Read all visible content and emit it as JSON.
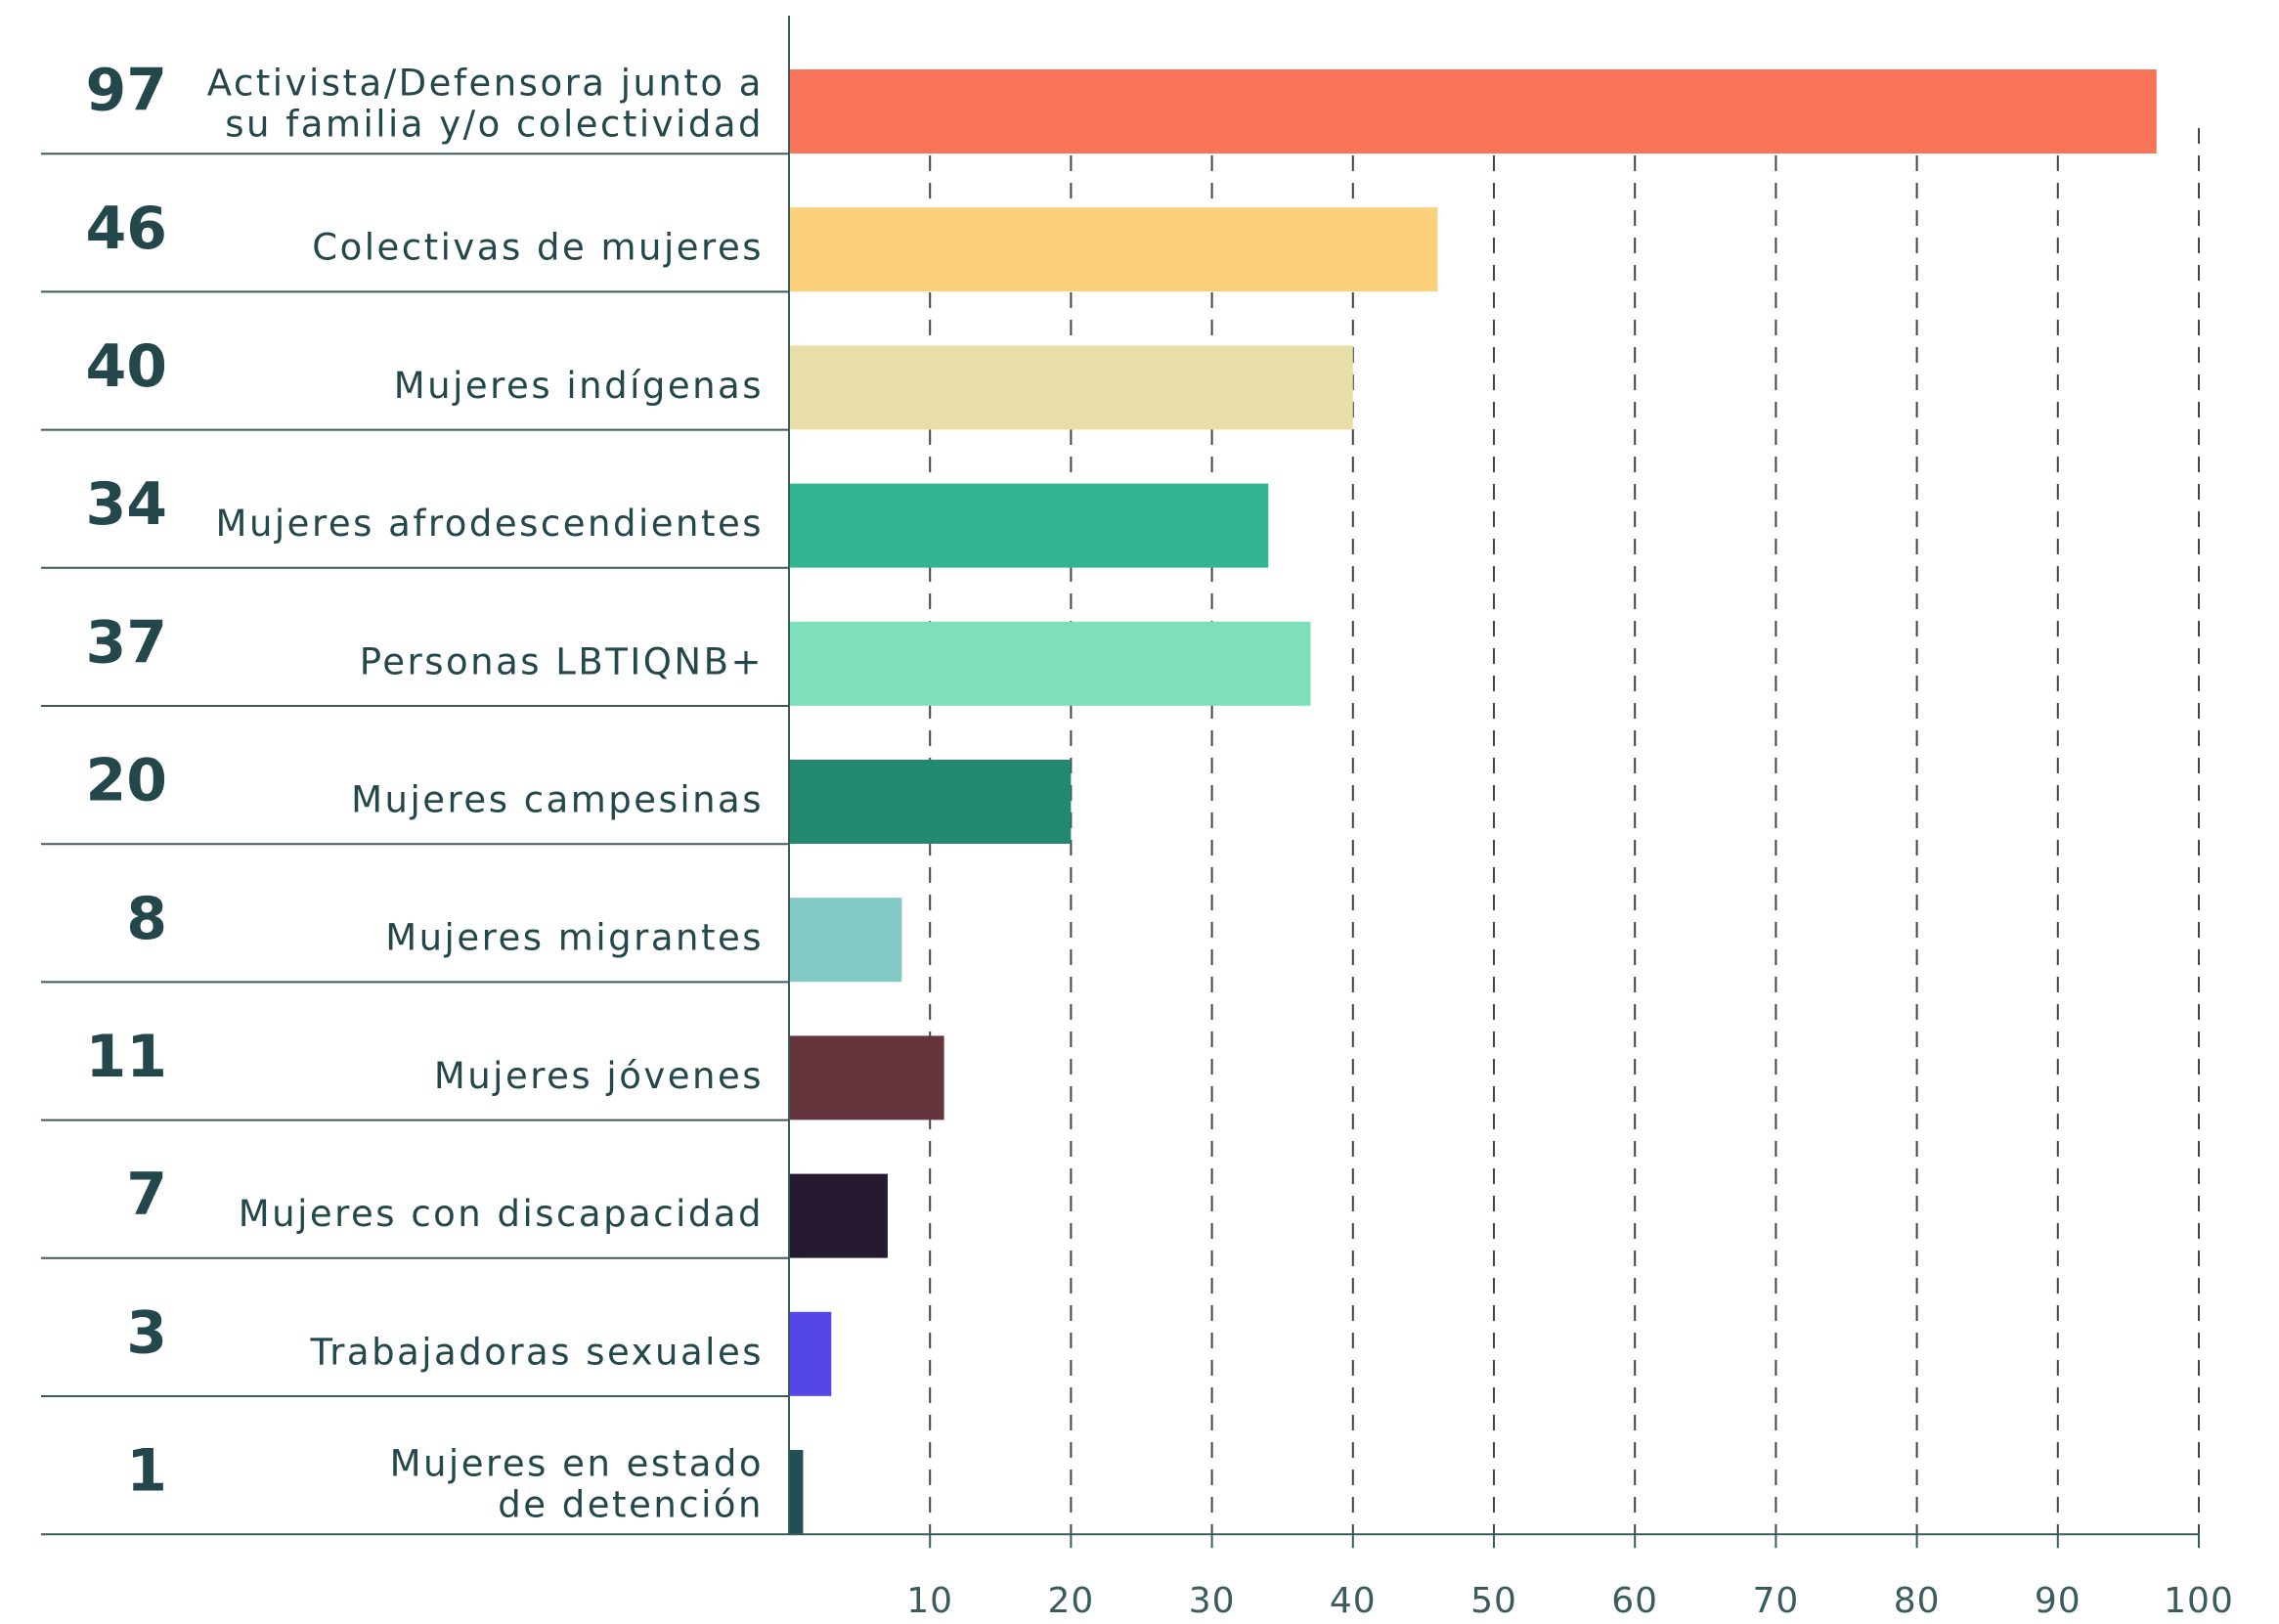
{
  "chart_data": {
    "type": "bar",
    "orientation": "horizontal",
    "categories": [
      [
        "Activista/Defensora junto a",
        "su familia y/o colectividad"
      ],
      [
        "Colectivas de mujeres"
      ],
      [
        "Mujeres indígenas"
      ],
      [
        "Mujeres afrodescendientes"
      ],
      [
        "Personas LBTIQNB+"
      ],
      [
        "Mujeres campesinas"
      ],
      [
        "Mujeres migrantes"
      ],
      [
        "Mujeres jóvenes"
      ],
      [
        "Mujeres con discapacidad"
      ],
      [
        "Trabajadoras sexuales"
      ],
      [
        "Mujeres en estado",
        "de detención"
      ]
    ],
    "values": [
      97,
      46,
      40,
      34,
      37,
      20,
      8,
      11,
      7,
      3,
      1
    ],
    "colors": [
      "#f7735a",
      "#fbd07a",
      "#e8dfa8",
      "#33b594",
      "#7de0bb",
      "#228870",
      "#82c9c4",
      "#66343d",
      "#261a30",
      "#5446e8",
      "#224f52"
    ],
    "xlim": [
      0,
      100
    ],
    "xticks": [
      10,
      20,
      30,
      40,
      50,
      60,
      70,
      80,
      90,
      100
    ],
    "grid": true
  }
}
